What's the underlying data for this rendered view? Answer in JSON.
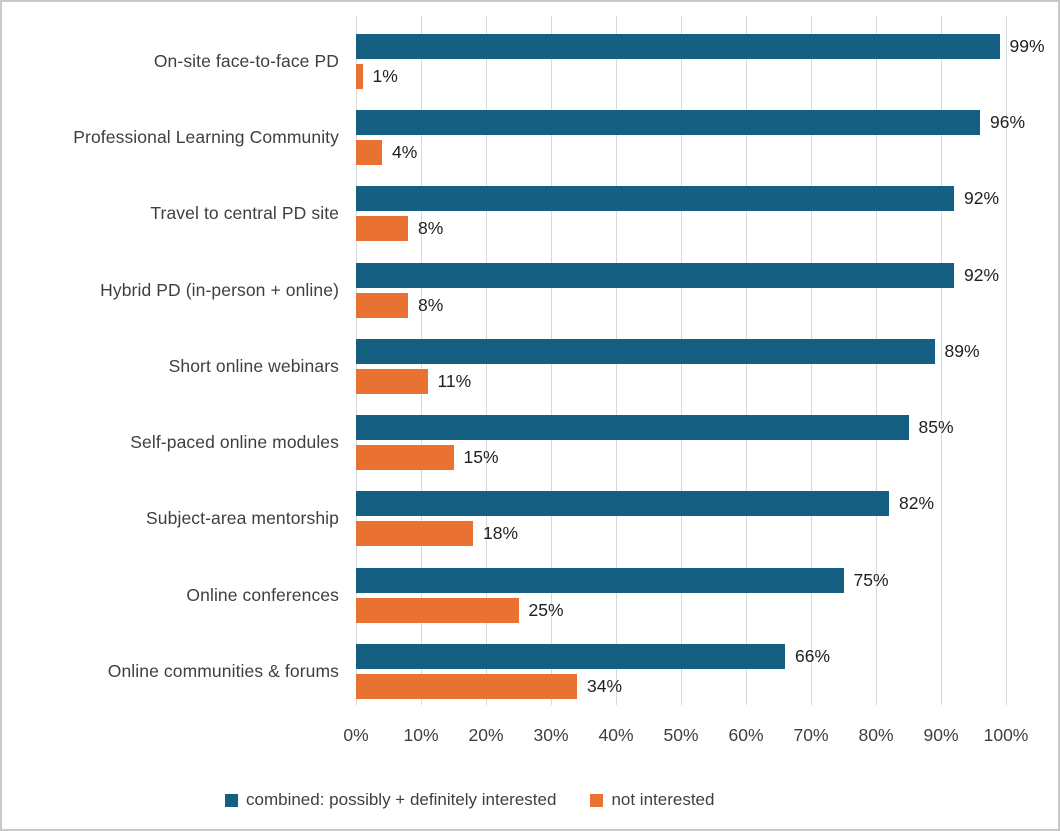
{
  "chart_data": {
    "type": "bar",
    "orientation": "horizontal",
    "title": "",
    "xlabel": "",
    "ylabel": "",
    "categories": [
      "On-site face-to-face PD",
      "Professional Learning Community",
      "Travel to central PD site",
      "Hybrid PD (in-person + online)",
      "Short online webinars",
      "Self-paced online modules",
      "Subject-area mentorship",
      "Online conferences",
      "Online communities & forums"
    ],
    "series": [
      {
        "name": "combined: possibly + definitely interested",
        "color": "#156082",
        "values": [
          99,
          96,
          92,
          92,
          89,
          85,
          82,
          75,
          66
        ]
      },
      {
        "name": "not interested",
        "color": "#e97132",
        "values": [
          1,
          4,
          8,
          8,
          11,
          15,
          18,
          25,
          34
        ]
      }
    ],
    "value_suffix": "%",
    "xlim": [
      0,
      100
    ],
    "x_tick_step": 10,
    "x_tick_labels": [
      "0%",
      "10%",
      "20%",
      "30%",
      "40%",
      "50%",
      "60%",
      "70%",
      "80%",
      "90%",
      "100%"
    ],
    "grid": "vertical",
    "legend_position": "bottom"
  },
  "colors": {
    "gridline": "#d9d9d9",
    "category_label": "#3f3f3f",
    "data_label": "#1f1f1f",
    "tick_label": "#3f3f3f",
    "frame_border": "#c9c9c9",
    "background": "#ffffff"
  }
}
